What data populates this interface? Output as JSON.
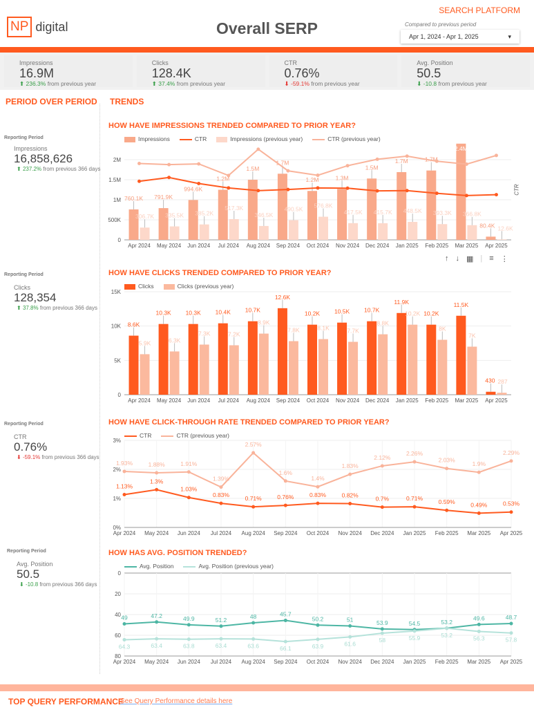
{
  "header": {
    "logo_np": "NP",
    "logo_text": "digital",
    "title": "Overall SERP",
    "platform": "SEARCH PLATFORM",
    "compare_label": "Compared to previous period",
    "date_range": "Apr 1, 2024 - Apr 1, 2025"
  },
  "kpis": [
    {
      "label": "Impressions",
      "value": "16.9M",
      "delta": "236.3%",
      "suffix": " from previous year",
      "dir": "up"
    },
    {
      "label": "Clicks",
      "value": "128.4K",
      "delta": "37.4%",
      "suffix": " from previous year",
      "dir": "up"
    },
    {
      "label": "CTR",
      "value": "0.76%",
      "delta": "-59.1%",
      "suffix": " from previous year",
      "dir": "down"
    },
    {
      "label": "Avg. Position",
      "value": "50.5",
      "delta": "-10.8",
      "suffix": " from previous year",
      "dir": "up"
    }
  ],
  "sections": {
    "period": "PERIOD OVER PERIOD",
    "trends": "TRENDS",
    "top_query": "TOP QUERY PERFORMANCE",
    "top_query_link": "See Query Performance details here"
  },
  "period": [
    {
      "reporting": "Reporting Period",
      "label": "Impressions",
      "value": "16,858,626",
      "delta": "237.2%",
      "suffix": " from previous 366 days",
      "dir": "up"
    },
    {
      "reporting": "Reporting Period",
      "label": "Clicks",
      "value": "128,354",
      "delta": "37.8%",
      "suffix": " from previous 366 days",
      "dir": "up"
    },
    {
      "reporting": "Reporting Period",
      "label": "CTR",
      "value": "0.76%",
      "delta": "-59.1%",
      "suffix": " from previous 366 days",
      "dir": "down"
    },
    {
      "reporting": "Reporting Period",
      "label": "Avg. Position",
      "value": "50.5",
      "delta": "-10.8",
      "suffix": " from previous 366 days",
      "dir": "up"
    }
  ],
  "chart_data": [
    {
      "type": "bar",
      "title": "HOW HAVE IMPRESSIONS TRENDED COMPARED TO PRIOR YEAR?",
      "right_axis_label": "CTR",
      "categories": [
        "Apr 2024",
        "May 2024",
        "Jun 2024",
        "Jul 2024",
        "Aug 2024",
        "Sep 2024",
        "Oct 2024",
        "Nov 2024",
        "Dec 2024",
        "Jan 2025",
        "Feb 2025",
        "Mar 2025",
        "Apr 2025"
      ],
      "ylim": [
        0,
        2500000
      ],
      "yticks": [
        0,
        500000,
        1000000,
        1500000,
        2000000
      ],
      "ytick_labels": [
        "0",
        "500K",
        "1M",
        "1.5M",
        "2M"
      ],
      "y2lim": [
        -1.5,
        3
      ],
      "series": [
        {
          "name": "Impressions",
          "kind": "bar",
          "color": "#f9a98a",
          "label_color": "#f79c7c",
          "values": [
            760100,
            791900,
            994600,
            1250000,
            1500000,
            1650000,
            1220000,
            1270000,
            1530000,
            1690000,
            1730000,
            2400000,
            80400
          ],
          "labels": [
            "760.1K",
            "791.9K",
            "994.6K",
            "1.2M",
            "1.5M",
            "1.7M",
            "1.2M",
            "1.3M",
            "1.5M",
            "1.7M",
            "1.7M",
            "2.4M",
            "80.4K"
          ]
        },
        {
          "name": "CTR",
          "kind": "line",
          "axis": "right",
          "color": "#ff5a1f",
          "values": [
            1.13,
            1.3,
            1.03,
            0.83,
            0.71,
            0.76,
            0.83,
            0.82,
            0.7,
            0.71,
            0.59,
            0.49,
            0.53
          ]
        },
        {
          "name": "Impressions (previous year)",
          "kind": "bar",
          "color": "#fdd8ca",
          "label_color": "#fbd0c0",
          "values": [
            306700,
            335500,
            385200,
            517300,
            346500,
            490500,
            576800,
            417500,
            415700,
            448500,
            393300,
            366800,
            12600
          ],
          "labels": [
            "306.7K",
            "335.5K",
            "385.2K",
            "517.3K",
            "346.5K",
            "490.5K",
            "576.8K",
            "417.5K",
            "415.7K",
            "448.5K",
            "393.3K",
            "366.8K",
            "12.6K"
          ]
        },
        {
          "name": "CTR (previous year)",
          "kind": "line",
          "axis": "right",
          "color": "#f9b39a",
          "values": [
            1.93,
            1.88,
            1.91,
            1.39,
            2.57,
            1.6,
            1.4,
            1.83,
            2.12,
            2.26,
            2.03,
            1.9,
            2.29
          ]
        }
      ]
    },
    {
      "type": "bar",
      "title": "HOW HAVE CLICKS TRENDED COMPARED TO PRIOR YEAR?",
      "categories": [
        "Apr 2024",
        "May 2024",
        "Jun 2024",
        "Jul 2024",
        "Aug 2024",
        "Sep 2024",
        "Oct 2024",
        "Nov 2024",
        "Dec 2024",
        "Jan 2025",
        "Feb 2025",
        "Mar 2025",
        "Apr 2025"
      ],
      "ylim": [
        0,
        15000
      ],
      "yticks": [
        0,
        5000,
        10000,
        15000
      ],
      "ytick_labels": [
        "0",
        "5K",
        "10K",
        "15K"
      ],
      "series": [
        {
          "name": "Clicks",
          "kind": "bar",
          "color": "#ff5a1f",
          "label_color": "#ff5a1f",
          "values": [
            8600,
            10300,
            10300,
            10400,
            10700,
            12600,
            10200,
            10500,
            10700,
            11900,
            10200,
            11500,
            430
          ],
          "labels": [
            "8.6K",
            "10.3K",
            "10.3K",
            "10.4K",
            "10.7K",
            "12.6K",
            "10.2K",
            "10.5K",
            "10.7K",
            "11.9K",
            "10.2K",
            "11.5K",
            "430"
          ]
        },
        {
          "name": "Clicks (previous year)",
          "kind": "bar",
          "color": "#fbb99e",
          "label_color": "#fbc3ad",
          "values": [
            5900,
            6300,
            7300,
            7200,
            8900,
            7800,
            8100,
            7700,
            8800,
            10200,
            8000,
            7000,
            287
          ],
          "labels": [
            "5.9K",
            "6.3K",
            "7.3K",
            "7.2K",
            "8.9K",
            "7.8K",
            "8.1K",
            "7.7K",
            "8.8K",
            "10.2K",
            "8K",
            "7K",
            "287"
          ]
        }
      ]
    },
    {
      "type": "line",
      "title": "HOW HAVE CLICK-THROUGH RATE TRENDED COMPARED TO PRIOR YEAR?",
      "categories": [
        "Apr 2024",
        "May 2024",
        "Jun 2024",
        "Jul 2024",
        "Aug 2024",
        "Sep 2024",
        "Oct 2024",
        "Nov 2024",
        "Dec 2024",
        "Jan 2025",
        "Feb 2025",
        "Mar 2025",
        "Apr 2025"
      ],
      "ylim": [
        0,
        3
      ],
      "yticks": [
        0,
        1,
        2,
        3
      ],
      "ytick_labels": [
        "0%",
        "1%",
        "2%",
        "3%"
      ],
      "series": [
        {
          "name": "CTR",
          "kind": "line",
          "color": "#ff5a1f",
          "label_color": "#ff5a1f",
          "values": [
            1.13,
            1.3,
            1.03,
            0.83,
            0.71,
            0.76,
            0.83,
            0.82,
            0.7,
            0.71,
            0.59,
            0.49,
            0.53
          ],
          "labels": [
            "1.13%",
            "1.3%",
            "1.03%",
            "0.83%",
            "0.71%",
            "0.76%",
            "0.83%",
            "0.82%",
            "0.7%",
            "0.71%",
            "0.59%",
            "0.49%",
            "0.53%"
          ]
        },
        {
          "name": "CTR (previous year)",
          "kind": "line",
          "color": "#f9b39a",
          "label_color": "#f9b39a",
          "values": [
            1.93,
            1.88,
            1.91,
            1.39,
            2.57,
            1.6,
            1.4,
            1.83,
            2.12,
            2.26,
            2.03,
            1.9,
            2.29
          ],
          "labels": [
            "1.93%",
            "1.88%",
            "1.91%",
            "1.39%",
            "2.57%",
            "1.6%",
            "1.4%",
            "1.83%",
            "2.12%",
            "2.26%",
            "2.03%",
            "1.9%",
            "2.29%"
          ]
        }
      ]
    },
    {
      "type": "line",
      "title": "HOW HAS AVG. POSITION TRENDED?",
      "y_reversed": true,
      "categories": [
        "Apr 2024",
        "May 2024",
        "Jun 2024",
        "Jul 2024",
        "Aug 2024",
        "Sep 2024",
        "Oct 2024",
        "Nov 2024",
        "Dec 2024",
        "Jan 2025",
        "Feb 2025",
        "Mar 2025",
        "Apr 2025"
      ],
      "ylim": [
        0,
        80
      ],
      "yticks": [
        0,
        20,
        40,
        60,
        80
      ],
      "ytick_labels": [
        "0",
        "20",
        "40",
        "60",
        "80"
      ],
      "series": [
        {
          "name": "Avg. Position",
          "kind": "line",
          "color": "#4db6a4",
          "label_color": "#4db6a4",
          "values": [
            49,
            47.2,
            49.9,
            51.2,
            48,
            45.7,
            50.2,
            51,
            53.9,
            54.5,
            53.2,
            49.6,
            48.7
          ],
          "labels": [
            "49",
            "47.2",
            "49.9",
            "51.2",
            "48",
            "45.7",
            "50.2",
            "51",
            "53.9",
            "54.5",
            "53.2",
            "49.6",
            "48.7"
          ]
        },
        {
          "name": "Avg. Position (previous year)",
          "kind": "line",
          "color": "#b5e2da",
          "label_color": "#a9dcd2",
          "values": [
            64.3,
            63.4,
            63.8,
            63.4,
            63.6,
            66.1,
            63.9,
            61.6,
            58,
            55.9,
            53.2,
            56.3,
            57.8
          ],
          "labels": [
            "64.3",
            "63.4",
            "63.8",
            "63.4",
            "63.6",
            "66.1",
            "63.9",
            "61.6",
            "58",
            "55.9",
            "53.2",
            "56.3",
            "57.8"
          ]
        }
      ]
    }
  ]
}
